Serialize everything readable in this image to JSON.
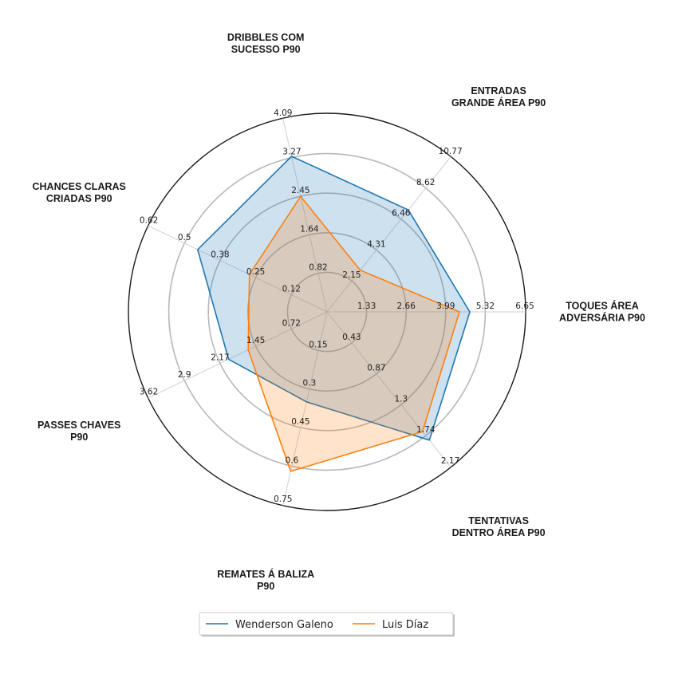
{
  "chart_data": {
    "type": "radar",
    "axes": [
      {
        "label": [
          "TOQUES ÁREA",
          "ADVERSÁRIA P90"
        ],
        "ticks": [
          "1.33",
          "2.66",
          "3.99",
          "5.32",
          "6.65"
        ],
        "max": 6.65
      },
      {
        "label": [
          "ENTRADAS",
          "GRANDE ÁREA P90"
        ],
        "ticks": [
          "2.15",
          "4.31",
          "6.46",
          "8.62",
          "10.77"
        ],
        "max": 10.77
      },
      {
        "label": [
          "DRIBBLES COM",
          "SUCESSO P90"
        ],
        "ticks": [
          "0.82",
          "1.64",
          "2.45",
          "3.27",
          "4.09"
        ],
        "max": 4.09
      },
      {
        "label": [
          "CHANCES CLARAS",
          "CRIADAS P90"
        ],
        "ticks": [
          "0.12",
          "0.25",
          "0.38",
          "0.5",
          "0.62"
        ],
        "max": 0.62
      },
      {
        "label": [
          "PASSES CHAVES",
          "P90"
        ],
        "ticks": [
          "0.72",
          "1.45",
          "2.17",
          "2.9",
          "3.62"
        ],
        "max": 3.62
      },
      {
        "label": [
          "REMATES Á BALIZA",
          "P90"
        ],
        "ticks": [
          "0.15",
          "0.3",
          "0.45",
          "0.6",
          "0.75"
        ],
        "max": 0.75
      },
      {
        "label": [
          "TENTATIVAS",
          "DENTRO ÁREA P90"
        ],
        "ticks": [
          "0.43",
          "0.87",
          "1.3",
          "1.74",
          "2.17"
        ],
        "max": 2.17
      }
    ],
    "series": [
      {
        "name": "Wenderson Galeno",
        "color": "#1f77b4",
        "values": [
          4.8,
          7.1,
          3.3,
          0.45,
          2.0,
          0.35,
          1.8
        ]
      },
      {
        "name": "Luis Díaz",
        "color": "#ff7f0e",
        "values": [
          4.45,
          2.9,
          2.45,
          0.27,
          1.6,
          0.62,
          1.68
        ]
      }
    ],
    "grid": true,
    "legend_position": "bottom-center"
  }
}
